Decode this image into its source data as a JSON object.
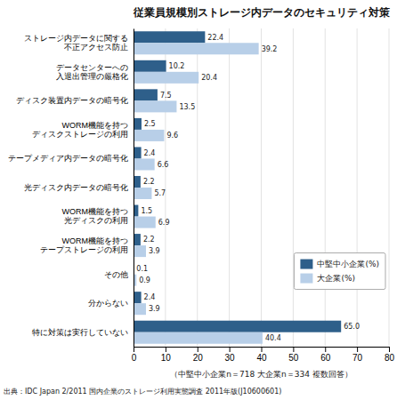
{
  "chart_data": {
    "type": "bar",
    "orientation": "horizontal",
    "title": "従業員規模別ストレージ内データのセキュリティ対策",
    "xlabel": "（中堅中小企業n＝718 大企業n＝334 複数回答）",
    "footnote": "出典：IDC Japan 2/2011 国内企業のストレージ利用実態調査 2011年版(J10600601)",
    "categories": [
      "ストレージ内データに関する\n不正アクセス防止",
      "データセンターへの\n入退出管理の厳格化",
      "ディスク装置内データの暗号化",
      "WORM機能を持つ\nディスクストレージの利用",
      "テープメディア内データの暗号化",
      "光ディスク内データの暗号化",
      "WORM機能を持つ\n光ディスクの利用",
      "WORM機能を持つ\nテープストレージの利用",
      "その他",
      "分からない",
      "特に対策は実行していない"
    ],
    "series": [
      {
        "name": "中堅中小企業(%)",
        "color": "#2e5f8a",
        "values": [
          22.4,
          10.2,
          7.5,
          2.5,
          2.4,
          2.2,
          1.5,
          2.2,
          0.1,
          2.4,
          65.0
        ],
        "value_labels": [
          "22.4",
          "10.2",
          "7.5",
          "2.5",
          "2.4",
          "2.2",
          "1.5",
          "2.2",
          "0.1",
          "2.4",
          "65.0"
        ]
      },
      {
        "name": "大企業(%)",
        "color": "#b8cfe8",
        "values": [
          39.2,
          20.4,
          13.5,
          9.6,
          6.6,
          5.7,
          6.9,
          3.9,
          0.9,
          3.9,
          40.4
        ],
        "value_labels": [
          "39.2",
          "20.4",
          "13.5",
          "9.6",
          "6.6",
          "5.7",
          "6.9",
          "3.9",
          "0.9",
          "3.9",
          "40.4"
        ]
      }
    ],
    "xlim": [
      0,
      80
    ],
    "xticks": [
      0,
      10,
      20,
      30,
      40,
      50,
      60,
      70,
      80
    ],
    "data_labels": true,
    "grid": true,
    "legend": "lower right"
  }
}
